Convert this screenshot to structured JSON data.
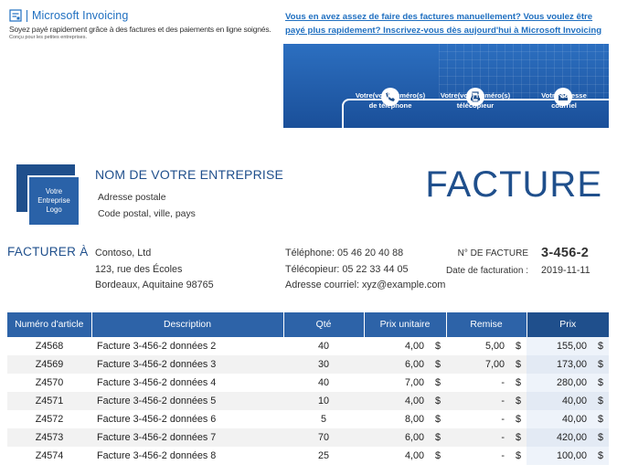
{
  "brand": {
    "name": "Microsoft Invoicing",
    "tagline": "Soyez payé rapidement grâce à des factures et des paiements en ligne soignés.",
    "small": "Conçu pour les petites entreprises."
  },
  "promo": {
    "text": "Vous en avez assez de faire des factures manuellement? Vous voulez être payé plus rapidement? Inscrivez-vous dès aujourd'hui à Microsoft Invoicing"
  },
  "hero": {
    "items": [
      {
        "label": "Votre(vos) numéro(s) de téléphone",
        "icon": "phone-icon"
      },
      {
        "label": "Votre(vos) numéro(s) télécopieur",
        "icon": "fax-icon"
      },
      {
        "label": "Votre adresse courriel",
        "icon": "mail-icon"
      }
    ]
  },
  "company": {
    "logo_text": "Votre Entreprise Logo",
    "name": "NOM DE VOTRE ENTREPRISE",
    "address_line1": "Adresse postale",
    "address_line2": "Code postal, ville, pays"
  },
  "invoice": {
    "title": "FACTURE",
    "number_label": "N° DE FACTURE",
    "number": "3-456-2",
    "date_label": "Date de facturation :",
    "date": "2019-11-11"
  },
  "bill_to": {
    "label": "FACTURER À",
    "name": "Contoso, Ltd",
    "street": "123, rue des Écoles",
    "city": "Bordeaux, Aquitaine 98765",
    "phone": "Téléphone: 05 46 20 40 88",
    "fax": "Télécopieur: 05 22 33 44 05",
    "email": "Adresse courriel: xyz@example.com"
  },
  "table": {
    "headers": [
      "Numéro d'article",
      "Description",
      "Qté",
      "Prix unitaire",
      "Remise",
      "Prix"
    ],
    "currency": "$",
    "rows": [
      {
        "article": "Z4568",
        "description": "Facture 3-456-2 données 2",
        "qty": "40",
        "unit": "4,00",
        "discount": "5,00",
        "price": "155,00"
      },
      {
        "article": "Z4569",
        "description": "Facture 3-456-2 données 3",
        "qty": "30",
        "unit": "6,00",
        "discount": "7,00",
        "price": "173,00"
      },
      {
        "article": "Z4570",
        "description": "Facture 3-456-2 données 4",
        "qty": "40",
        "unit": "7,00",
        "discount": "-",
        "price": "280,00"
      },
      {
        "article": "Z4571",
        "description": "Facture 3-456-2 données 5",
        "qty": "10",
        "unit": "4,00",
        "discount": "-",
        "price": "40,00"
      },
      {
        "article": "Z4572",
        "description": "Facture 3-456-2 données 6",
        "qty": "5",
        "unit": "8,00",
        "discount": "-",
        "price": "40,00"
      },
      {
        "article": "Z4573",
        "description": "Facture 3-456-2 données 7",
        "qty": "70",
        "unit": "6,00",
        "discount": "-",
        "price": "420,00"
      },
      {
        "article": "Z4574",
        "description": "Facture 3-456-2 données 8",
        "qty": "25",
        "unit": "4,00",
        "discount": "-",
        "price": "100,00"
      }
    ]
  },
  "colors": {
    "accent": "#1f4f8c",
    "header": "#2d63a8",
    "link": "#1f6fc0"
  }
}
